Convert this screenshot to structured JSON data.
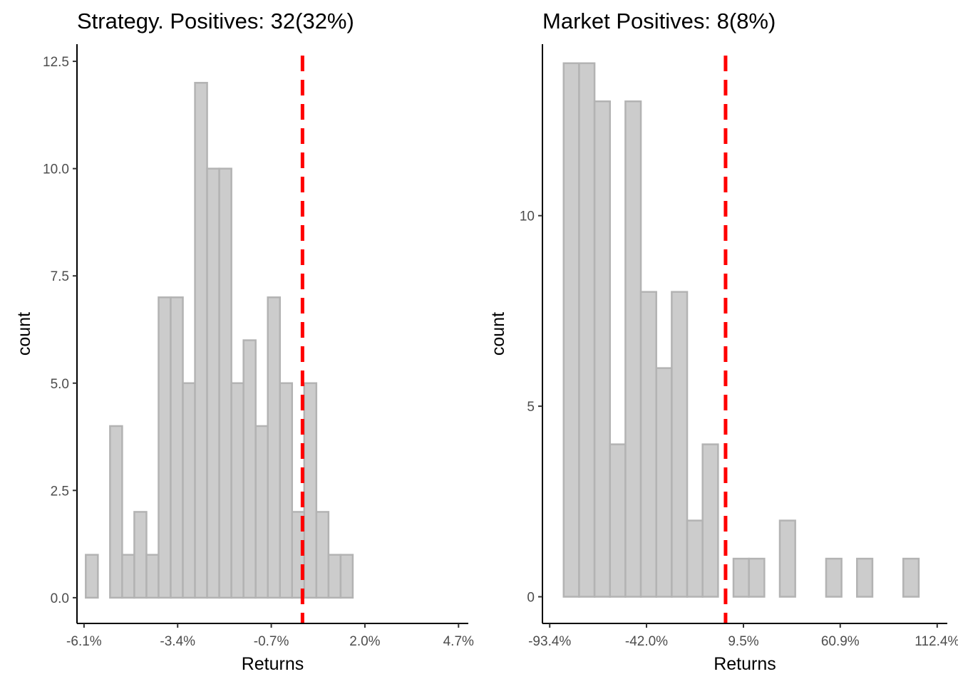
{
  "colors": {
    "bar_fill": "#cccccc",
    "bar_stroke": "#b3b3b3",
    "reference_line": "#ff0000",
    "axis": "#000000",
    "tick_text": "#4d4d4d"
  },
  "chart_data": [
    {
      "type": "bar",
      "title": "Strategy. Positives: 32(32%)",
      "xlabel": "Returns",
      "ylabel": "count",
      "xlim": [
        -6.1,
        4.7
      ],
      "ylim": [
        -0.6,
        12.9
      ],
      "x_ticks": [
        {
          "value": -6.1,
          "label": "-6.1%"
        },
        {
          "value": -3.4,
          "label": "-3.4%"
        },
        {
          "value": -0.7,
          "label": "-0.7%"
        },
        {
          "value": 2.0,
          "label": "2.0%"
        },
        {
          "value": 4.7,
          "label": "4.7%"
        }
      ],
      "y_ticks": [
        {
          "value": 0,
          "label": "0.0"
        },
        {
          "value": 2.5,
          "label": "2.5"
        },
        {
          "value": 5,
          "label": "5.0"
        },
        {
          "value": 7.5,
          "label": "7.5"
        },
        {
          "value": 10,
          "label": "10.0"
        },
        {
          "value": 12.5,
          "label": "12.5"
        }
      ],
      "bin_start": -6.05,
      "bin_width": 0.35,
      "values": [
        1,
        0,
        4,
        1,
        2,
        1,
        7,
        7,
        5,
        12,
        10,
        10,
        5,
        6,
        4,
        7,
        5,
        2,
        5,
        2,
        1,
        1,
        0
      ],
      "reference_x": 0.2
    },
    {
      "type": "bar",
      "title": "Market Positives: 8(8%)",
      "xlabel": "Returns",
      "ylabel": "count",
      "xlim": [
        -93.4,
        112.4
      ],
      "ylim": [
        -0.7,
        14.5
      ],
      "x_ticks": [
        {
          "value": -93.4,
          "label": "-93.4%"
        },
        {
          "value": -42.0,
          "label": "-42.0%"
        },
        {
          "value": 9.5,
          "label": "9.5%"
        },
        {
          "value": 60.9,
          "label": "60.9%"
        },
        {
          "value": 112.4,
          "label": "112.4%"
        }
      ],
      "y_ticks": [
        {
          "value": 0,
          "label": "0"
        },
        {
          "value": 5,
          "label": "5"
        },
        {
          "value": 10,
          "label": "10"
        }
      ],
      "bin_start": -86.0,
      "bin_width": 8.2,
      "values": [
        14,
        14,
        13,
        4,
        13,
        8,
        6,
        8,
        2,
        4,
        0,
        1,
        1,
        0,
        2,
        0,
        0,
        1,
        0,
        1,
        0,
        0,
        1
      ],
      "reference_x": 0.0
    }
  ]
}
